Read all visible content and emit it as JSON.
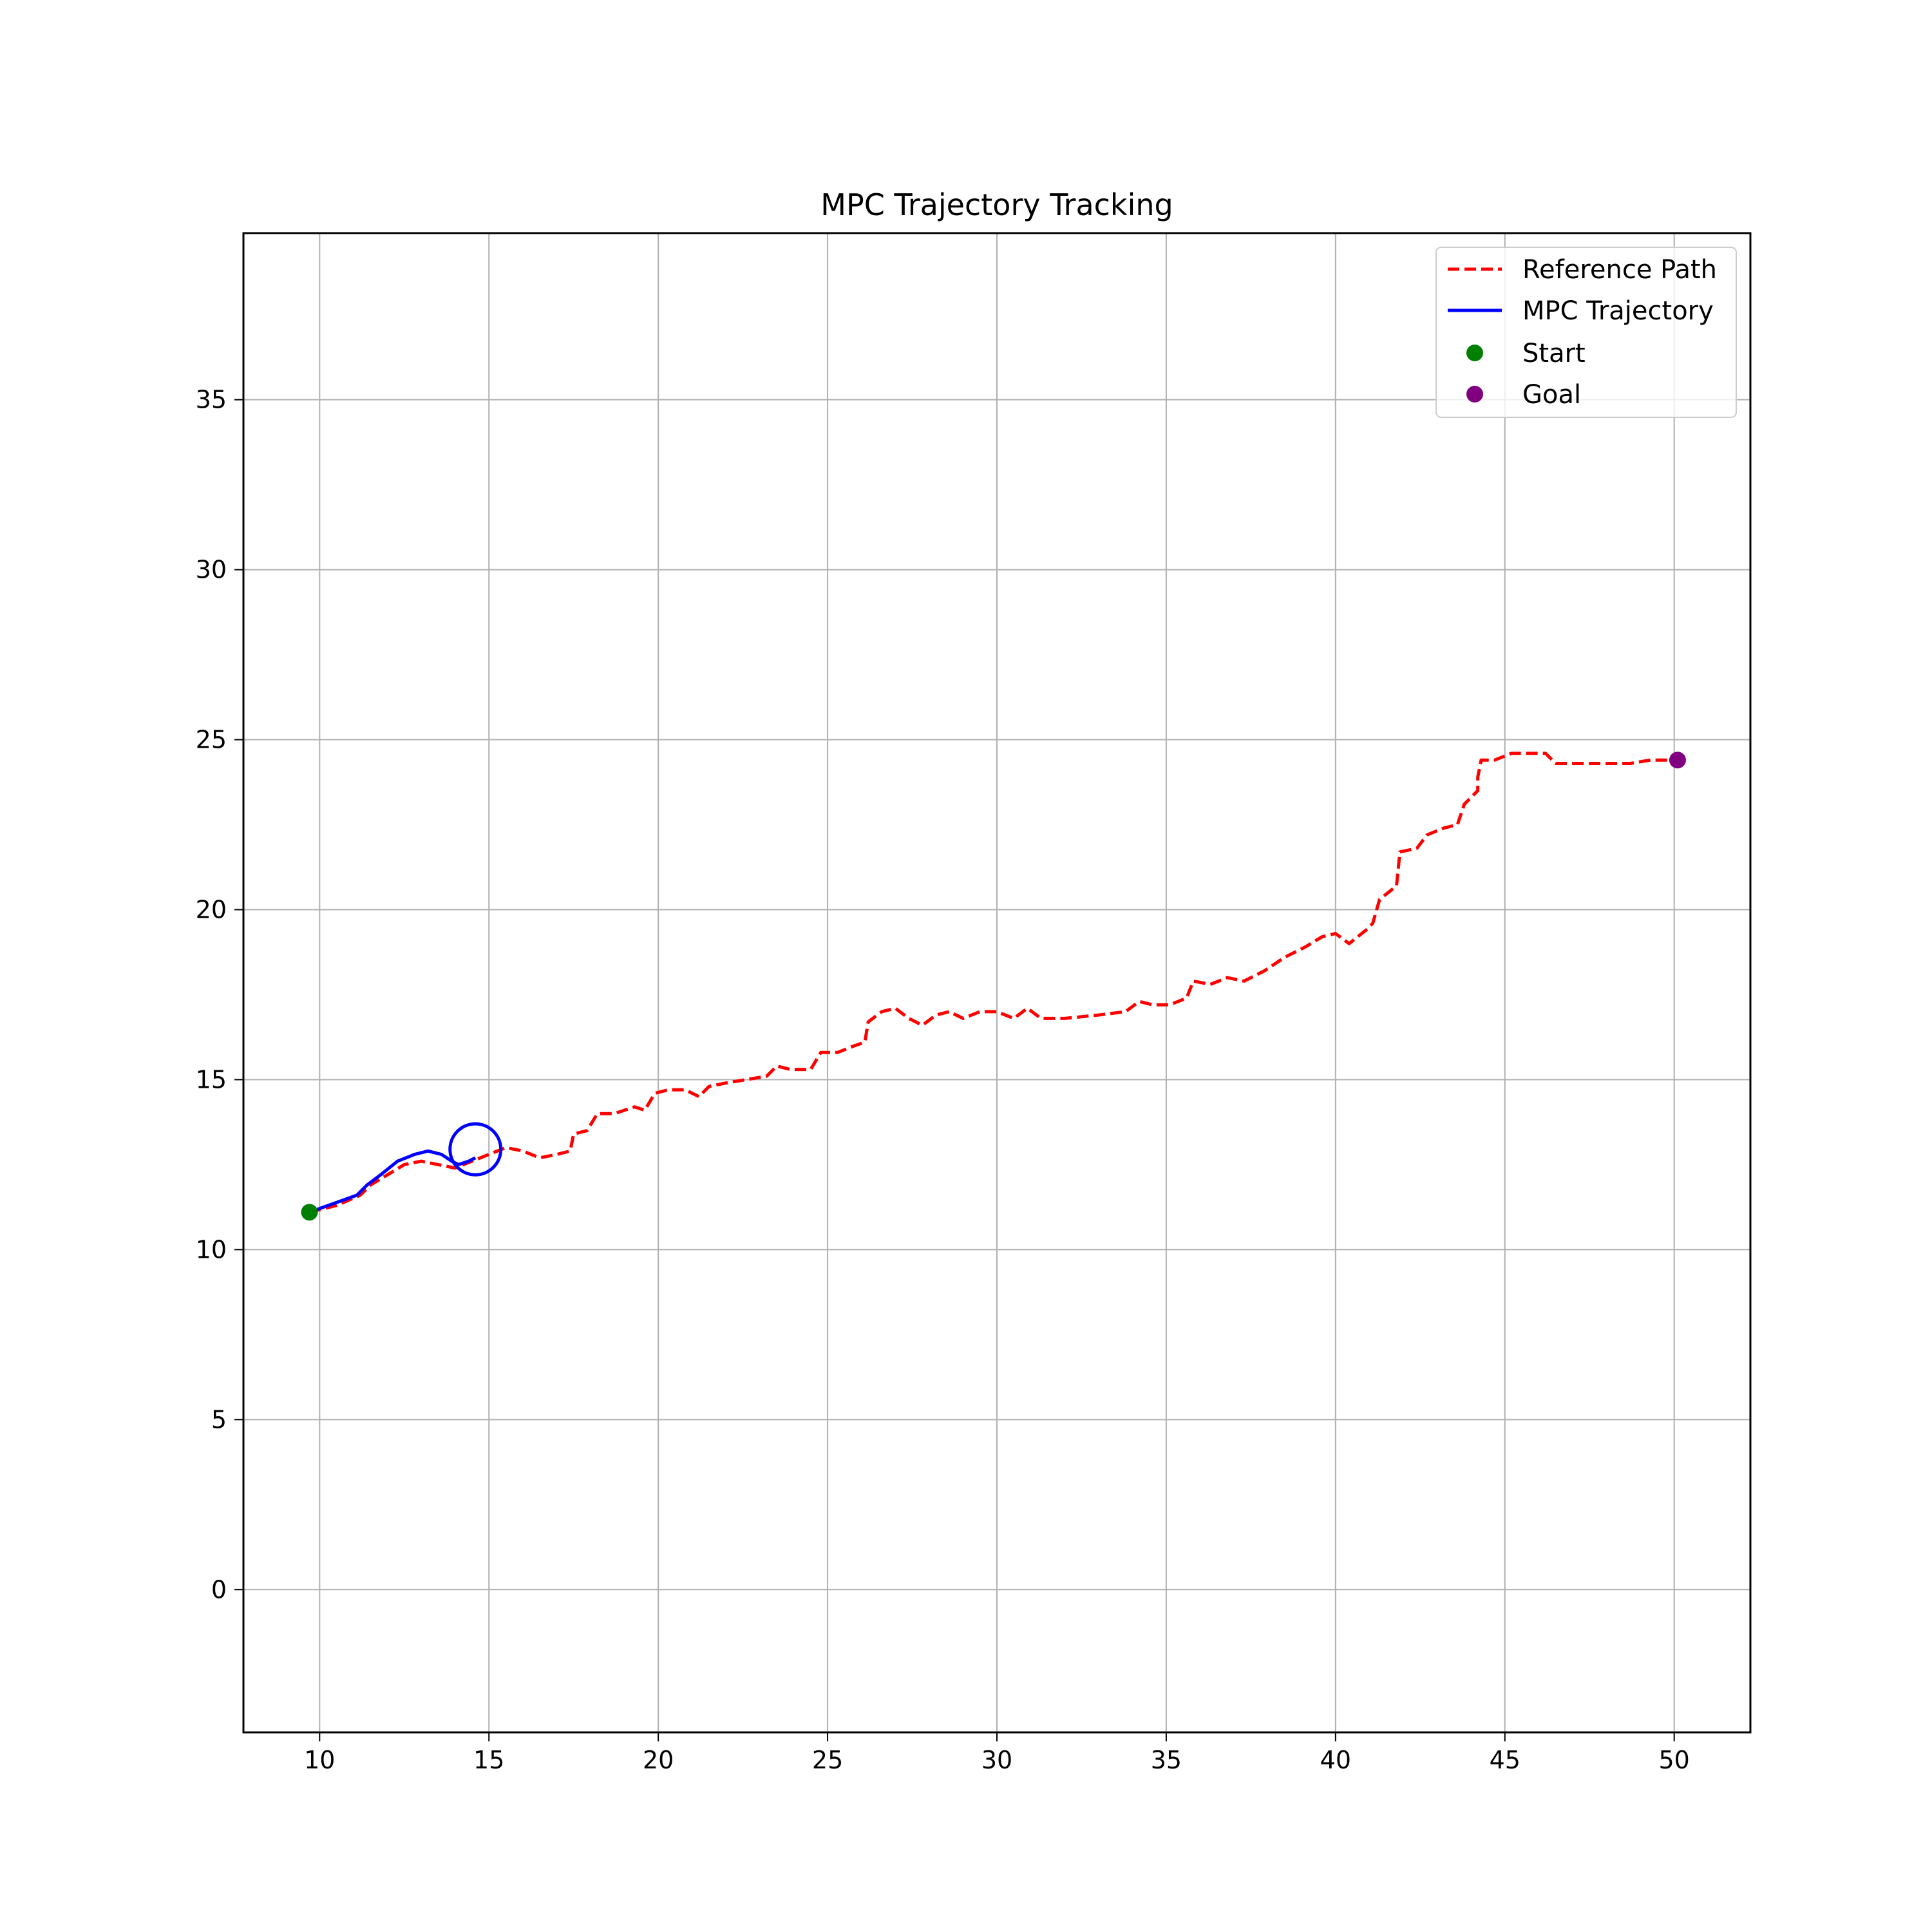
{
  "chart_data": {
    "type": "line",
    "title": "MPC Trajectory Tracking",
    "xlabel": "",
    "ylabel": "",
    "xlim": [
      7.75,
      52.25
    ],
    "ylim": [
      -4.2,
      39.9
    ],
    "x_ticks": [
      10,
      15,
      20,
      25,
      30,
      35,
      40,
      45,
      50
    ],
    "y_ticks": [
      0,
      5,
      10,
      15,
      20,
      25,
      30,
      35
    ],
    "grid": true,
    "legend_position": "top-right",
    "series": [
      {
        "name": "Reference Path",
        "type": "line",
        "style": "dashed",
        "color": "#ff0000",
        "x": [
          9.7,
          10.5,
          11.2,
          11.5,
          12.0,
          12.5,
          13.0,
          13.5,
          14.0,
          14.5,
          15.0,
          15.5,
          16.0,
          16.5,
          17.0,
          17.4,
          17.5,
          17.9,
          18.2,
          18.7,
          19.0,
          19.3,
          19.6,
          19.9,
          20.3,
          20.8,
          21.2,
          21.5,
          22.0,
          22.6,
          23.2,
          23.5,
          23.9,
          24.5,
          24.8,
          25.3,
          25.8,
          26.1,
          26.2,
          26.6,
          27.0,
          27.4,
          27.8,
          28.2,
          28.6,
          29.0,
          29.5,
          30.0,
          30.5,
          30.9,
          31.3,
          32.0,
          33.0,
          33.8,
          34.2,
          34.6,
          35.1,
          35.6,
          35.8,
          36.3,
          36.8,
          37.3,
          37.9,
          38.5,
          39.1,
          39.6,
          40.0,
          40.4,
          40.9,
          41.1,
          41.3,
          41.8,
          41.9,
          42.4,
          42.7,
          43.2,
          43.6,
          43.8,
          44.2,
          44.2,
          44.3,
          44.7,
          45.2,
          45.8,
          46.2,
          46.5,
          47.2,
          48.0,
          48.7,
          49.3,
          50.1
        ],
        "y": [
          11.1,
          11.3,
          11.6,
          11.9,
          12.2,
          12.5,
          12.6,
          12.5,
          12.4,
          12.6,
          12.8,
          13.0,
          12.9,
          12.7,
          12.8,
          12.9,
          13.4,
          13.5,
          14.0,
          14.0,
          14.1,
          14.2,
          14.1,
          14.6,
          14.7,
          14.7,
          14.5,
          14.8,
          14.9,
          15.0,
          15.1,
          15.4,
          15.3,
          15.3,
          15.8,
          15.8,
          16.0,
          16.1,
          16.7,
          17.0,
          17.1,
          16.8,
          16.6,
          16.9,
          17.0,
          16.8,
          17.0,
          17.0,
          16.8,
          17.1,
          16.8,
          16.8,
          16.9,
          17.0,
          17.3,
          17.2,
          17.2,
          17.4,
          17.9,
          17.8,
          18.0,
          17.9,
          18.2,
          18.6,
          18.9,
          19.2,
          19.3,
          19.0,
          19.4,
          19.6,
          20.3,
          20.7,
          21.7,
          21.8,
          22.2,
          22.4,
          22.5,
          23.1,
          23.5,
          23.9,
          24.4,
          24.4,
          24.6,
          24.6,
          24.6,
          24.3,
          24.3,
          24.3,
          24.3,
          24.4,
          24.4
        ]
      },
      {
        "name": "MPC Trajectory",
        "type": "line",
        "style": "solid",
        "color": "#0000ff",
        "x": [
          9.7,
          10.4,
          11.1,
          11.4,
          11.8,
          12.3,
          12.8,
          13.2,
          13.6,
          13.9,
          14.1,
          14.4,
          14.6
        ],
        "y": [
          11.1,
          11.35,
          11.6,
          11.9,
          12.2,
          12.6,
          12.8,
          12.9,
          12.8,
          12.6,
          12.5,
          12.6,
          12.7
        ]
      },
      {
        "name": "Start",
        "type": "scatter",
        "color": "#008000",
        "points": [
          {
            "x": 9.7,
            "y": 11.1
          }
        ]
      },
      {
        "name": "Goal",
        "type": "scatter",
        "color": "#800080",
        "points": [
          {
            "x": 50.1,
            "y": 24.4
          }
        ]
      }
    ],
    "annotations": [
      {
        "kind": "circle",
        "color": "#0000ff",
        "x": 14.6,
        "y": 12.95,
        "radius": 0.75
      }
    ]
  }
}
